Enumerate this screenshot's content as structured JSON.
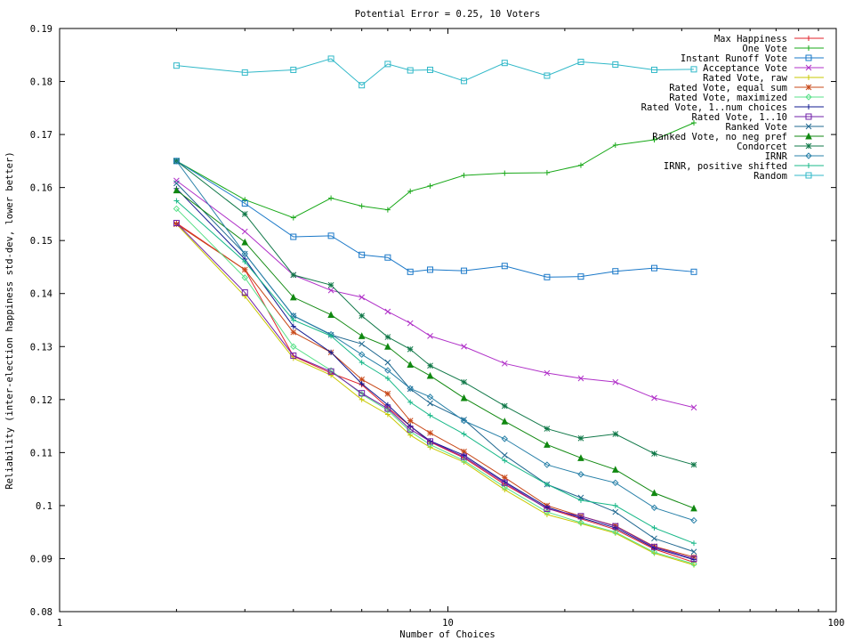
{
  "chart_data": {
    "type": "line",
    "title": "Potential Error = 0.25, 10 Voters",
    "xlabel": "Number of Choices",
    "ylabel": "Reliability (inter-election happiness std-dev, lower better)",
    "xscale": "log",
    "xlim": [
      1,
      100
    ],
    "ylim": [
      0.08,
      0.19
    ],
    "grid": false,
    "legend_position": "top-right",
    "x_ticks": [
      1,
      10,
      100
    ],
    "x_tick_labels": [
      "1",
      "10",
      "100"
    ],
    "y_ticks": [
      0.08,
      0.09,
      0.1,
      0.11,
      0.12,
      0.13,
      0.14,
      0.15,
      0.16,
      0.17,
      0.18,
      0.19
    ],
    "y_tick_labels": [
      "0.08",
      "0.09",
      "0.1",
      "0.11",
      "0.12",
      "0.13",
      "0.14",
      "0.15",
      "0.16",
      "0.17",
      "0.18",
      "0.19"
    ],
    "x": [
      2,
      3,
      4,
      5,
      6,
      7,
      8,
      9,
      11,
      14,
      18,
      22,
      27,
      34,
      43
    ],
    "series": [
      {
        "name": "Max Happiness",
        "color": "#e0202a",
        "marker": "plus",
        "values": [
          0.1533,
          0.1445,
          0.1282,
          0.125,
          0.1228,
          0.1185,
          0.115,
          0.112,
          0.109,
          0.104,
          0.0995,
          0.0975,
          0.0955,
          0.0918,
          0.0893
        ]
      },
      {
        "name": "One Vote",
        "color": "#18a818",
        "marker": "plus",
        "values": [
          0.165,
          0.1577,
          0.1543,
          0.158,
          0.1565,
          0.1558,
          0.1593,
          0.1603,
          0.1623,
          0.1627,
          0.1628,
          0.1642,
          0.168,
          0.169,
          0.1722
        ]
      },
      {
        "name": "Instant Runoff Vote",
        "color": "#1a78c8",
        "marker": "square",
        "values": [
          0.165,
          0.157,
          0.1507,
          0.1509,
          0.1473,
          0.1468,
          0.1441,
          0.1445,
          0.1443,
          0.1452,
          0.1431,
          0.1432,
          0.1442,
          0.1448,
          0.1441
        ]
      },
      {
        "name": "Acceptance Vote",
        "color": "#b030c8",
        "marker": "x",
        "values": [
          0.1613,
          0.1517,
          0.1435,
          0.1406,
          0.1393,
          0.1366,
          0.1344,
          0.132,
          0.13,
          0.1268,
          0.125,
          0.124,
          0.1233,
          0.1203,
          0.1185
        ]
      },
      {
        "name": "Rated Vote, raw",
        "color": "#c8c800",
        "marker": "plus",
        "values": [
          0.1531,
          0.1395,
          0.1278,
          0.1246,
          0.12,
          0.1172,
          0.1133,
          0.111,
          0.1082,
          0.103,
          0.0983,
          0.0966,
          0.0948,
          0.091,
          0.0888
        ]
      },
      {
        "name": "Rated Vote, equal sum",
        "color": "#c84818",
        "marker": "star",
        "values": [
          0.1531,
          0.1445,
          0.1327,
          0.1289,
          0.1238,
          0.1211,
          0.116,
          0.1137,
          0.1102,
          0.1053,
          0.1,
          0.098,
          0.0962,
          0.0923,
          0.0903
        ]
      },
      {
        "name": "Rated Vote, maximized",
        "color": "#58e088",
        "marker": "diamond",
        "values": [
          0.156,
          0.143,
          0.13,
          0.1255,
          0.121,
          0.118,
          0.114,
          0.1115,
          0.1085,
          0.1035,
          0.0988,
          0.0968,
          0.095,
          0.0912,
          0.089
        ]
      },
      {
        "name": "Rated Vote, 1..num choices",
        "color": "#101890",
        "marker": "plus",
        "values": [
          0.1598,
          0.1465,
          0.1338,
          0.1289,
          0.123,
          0.119,
          0.115,
          0.1122,
          0.1095,
          0.1045,
          0.0997,
          0.0977,
          0.0958,
          0.092,
          0.0898
        ]
      },
      {
        "name": "Rated Vote, 1..10",
        "color": "#7020a8",
        "marker": "square",
        "values": [
          0.1533,
          0.1402,
          0.1283,
          0.1253,
          0.1212,
          0.1183,
          0.1144,
          0.1121,
          0.1092,
          0.1043,
          0.0994,
          0.098,
          0.0961,
          0.0922,
          0.09
        ]
      },
      {
        "name": "Ranked Vote",
        "color": "#206890",
        "marker": "x",
        "values": [
          0.1608,
          0.1475,
          0.1358,
          0.1322,
          0.1305,
          0.127,
          0.122,
          0.1193,
          0.1162,
          0.1095,
          0.104,
          0.1015,
          0.0988,
          0.0938,
          0.0913
        ]
      },
      {
        "name": "Ranked Vote, no neg pref",
        "color": "#108810",
        "marker": "triangle",
        "values": [
          0.1595,
          0.1497,
          0.1393,
          0.136,
          0.132,
          0.13,
          0.1266,
          0.1245,
          0.1203,
          0.1159,
          0.1115,
          0.109,
          0.1068,
          0.1024,
          0.0995
        ]
      },
      {
        "name": "Condorcet",
        "color": "#107848",
        "marker": "star",
        "values": [
          0.165,
          0.155,
          0.1435,
          0.1416,
          0.1358,
          0.1318,
          0.1295,
          0.1264,
          0.1233,
          0.1188,
          0.1145,
          0.1127,
          0.1135,
          0.1098,
          0.1077
        ]
      },
      {
        "name": "IRNR",
        "color": "#2880a8",
        "marker": "diamond",
        "values": [
          0.165,
          0.1475,
          0.1358,
          0.1323,
          0.1285,
          0.1255,
          0.1221,
          0.1205,
          0.116,
          0.1126,
          0.1077,
          0.1059,
          0.1043,
          0.0996,
          0.0972
        ]
      },
      {
        "name": "IRNR, positive shifted",
        "color": "#18b888",
        "marker": "plus",
        "values": [
          0.1575,
          0.146,
          0.135,
          0.132,
          0.127,
          0.124,
          0.1195,
          0.117,
          0.1135,
          0.1085,
          0.104,
          0.101,
          0.1,
          0.0958,
          0.0929
        ]
      },
      {
        "name": "Random",
        "color": "#30b8c8",
        "marker": "square",
        "values": [
          0.183,
          0.1817,
          0.1822,
          0.1843,
          0.1793,
          0.1833,
          0.1821,
          0.1822,
          0.1801,
          0.1835,
          0.1811,
          0.1837,
          0.1832,
          0.1822,
          0.1823
        ]
      }
    ]
  }
}
